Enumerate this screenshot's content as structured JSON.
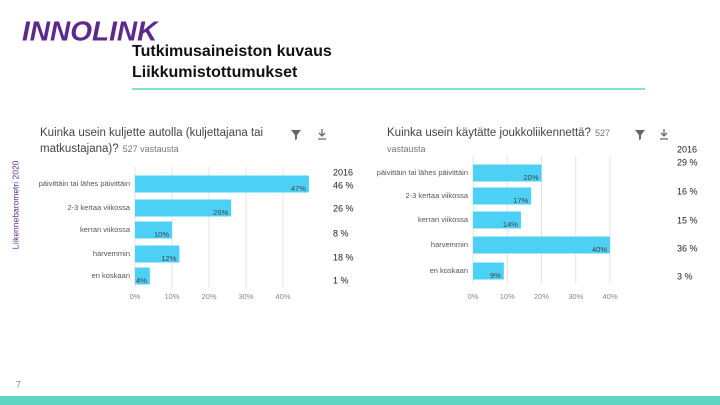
{
  "slide": {
    "logo": "INNOLINK",
    "title_lines": [
      "Tutkimusaineiston kuvaus",
      "Liikkumistottumukset"
    ],
    "side_label": "Liikennebarometri 2020",
    "page_number": "7"
  },
  "chart_data": [
    {
      "type": "bar",
      "orientation": "horizontal",
      "title": "Kuinka usein kuljette autolla (kuljettajana tai matkustajana)?",
      "subtitle": "527 vastausta",
      "categories": [
        "päivittäin tai lähes päivittäin",
        "2-3 kertaa viikossa",
        "kerran viikossa",
        "harvemmin",
        "en koskaan"
      ],
      "values": [
        47,
        26,
        10,
        12,
        4
      ],
      "value_labels": [
        "47%",
        "26%",
        "10%",
        "12%",
        "4%"
      ],
      "color": "#4dd0f5",
      "xlim": [
        0,
        40
      ],
      "xticks": [
        {
          "value": 0,
          "label": "0%"
        },
        {
          "value": 10,
          "label": "10%"
        },
        {
          "value": 20,
          "label": "20%"
        },
        {
          "value": 30,
          "label": "30%"
        },
        {
          "value": 40,
          "label": "40%"
        }
      ],
      "grid": true,
      "annotations": [
        "2016",
        "46 %",
        "26 %",
        "8 %",
        "18 %",
        "1 %"
      ]
    },
    {
      "type": "bar",
      "orientation": "horizontal",
      "title": "Kuinka usein käytätte joukkoliikennettä?",
      "subtitle": "527 vastausta",
      "categories": [
        "päivittäin tai lähes päivittäin",
        "2-3 kertaa viikossa",
        "kerran viikossa",
        "harvemmin",
        "en koskaan"
      ],
      "values": [
        20,
        17,
        14,
        40,
        9
      ],
      "value_labels": [
        "20%",
        "17%",
        "14%",
        "40%",
        "9%"
      ],
      "color": "#4dd0f5",
      "xlim": [
        0,
        40
      ],
      "xticks": [
        {
          "value": 0,
          "label": "0%"
        },
        {
          "value": 10,
          "label": "10%"
        },
        {
          "value": 20,
          "label": "20%"
        },
        {
          "value": 30,
          "label": "30%"
        },
        {
          "value": 40,
          "label": "40%"
        }
      ],
      "grid": true,
      "annotations": [
        "2016",
        "29 %",
        "16 %",
        "15 %",
        "36 %",
        "3 %"
      ]
    }
  ]
}
